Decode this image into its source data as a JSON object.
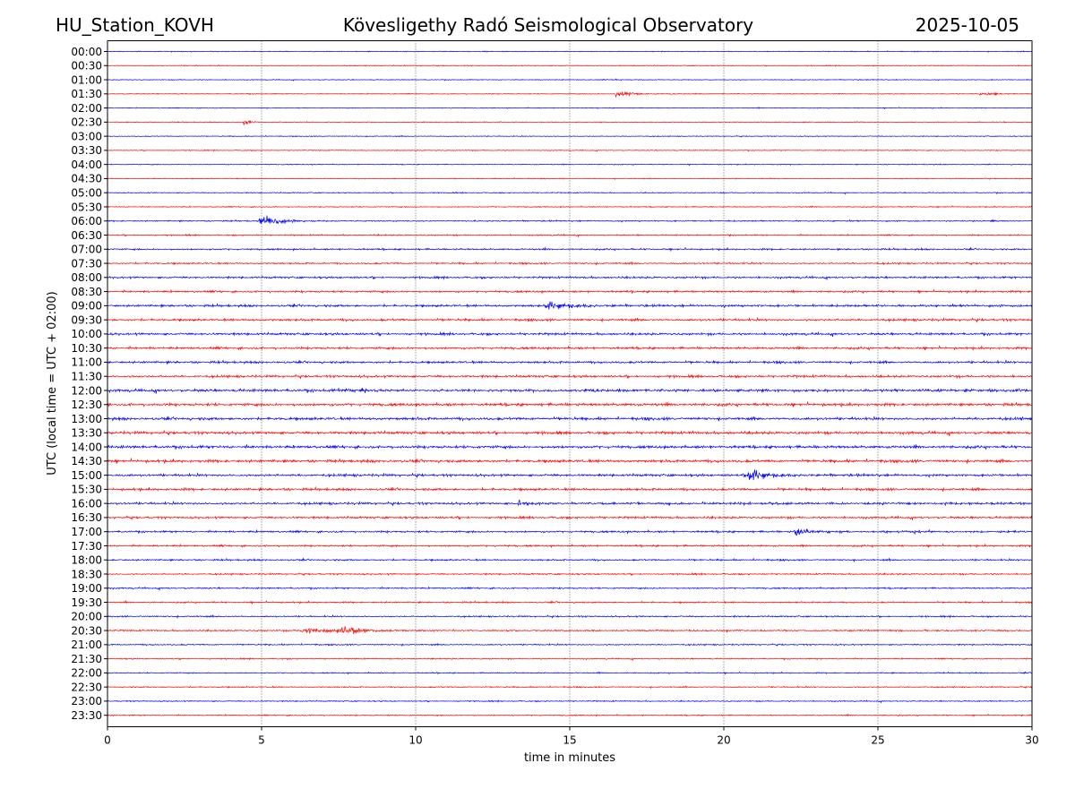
{
  "header": {
    "station": "HU_Station_KOVH",
    "observatory": "Kövesligethy Radó Seismological Observatory",
    "date": "2025-10-05"
  },
  "chart_data": {
    "type": "line",
    "title": "Kövesligethy Radó Seismological Observatory",
    "xlabel": "time in minutes",
    "ylabel": "UTC (local time = UTC + 02:00)",
    "xlim": [
      0,
      30
    ],
    "x_ticks": [
      "0",
      "5",
      "10",
      "15",
      "20",
      "25",
      "30"
    ],
    "x_tick_values": [
      0,
      5,
      10,
      15,
      20,
      25,
      30
    ],
    "grid": "vertical dotted lines at 5-minute ticks",
    "colors": {
      "even_rows": "#0000ff",
      "odd_rows": "#ff0000"
    },
    "rows": [
      {
        "label": "00:00",
        "color": "#0000ff",
        "noise": 0.5,
        "events": []
      },
      {
        "label": "00:30",
        "color": "#ff0000",
        "noise": 0.5,
        "events": []
      },
      {
        "label": "01:00",
        "color": "#0000ff",
        "noise": 0.5,
        "events": [
          {
            "t": 16.5,
            "amp": 1.8,
            "dur": 0.15
          }
        ]
      },
      {
        "label": "01:30",
        "color": "#ff0000",
        "noise": 0.5,
        "events": [
          {
            "t": 16.5,
            "amp": 7,
            "dur": 1.0
          },
          {
            "t": 28.3,
            "amp": 2.5,
            "dur": 1.2
          }
        ]
      },
      {
        "label": "02:00",
        "color": "#0000ff",
        "noise": 0.5,
        "events": []
      },
      {
        "label": "02:30",
        "color": "#ff0000",
        "noise": 0.5,
        "events": [
          {
            "t": 4.4,
            "amp": 4.5,
            "dur": 0.5
          }
        ]
      },
      {
        "label": "03:00",
        "color": "#0000ff",
        "noise": 0.5,
        "events": []
      },
      {
        "label": "03:30",
        "color": "#ff0000",
        "noise": 0.5,
        "events": []
      },
      {
        "label": "04:00",
        "color": "#0000ff",
        "noise": 0.5,
        "events": []
      },
      {
        "label": "04:30",
        "color": "#ff0000",
        "noise": 0.5,
        "events": []
      },
      {
        "label": "05:00",
        "color": "#0000ff",
        "noise": 0.6,
        "events": []
      },
      {
        "label": "05:30",
        "color": "#ff0000",
        "noise": 0.6,
        "events": []
      },
      {
        "label": "06:00",
        "color": "#0000ff",
        "noise": 0.8,
        "events": [
          {
            "t": 4.95,
            "amp": 11,
            "dur": 1.2
          }
        ]
      },
      {
        "label": "06:30",
        "color": "#ff0000",
        "noise": 0.8,
        "events": []
      },
      {
        "label": "07:00",
        "color": "#0000ff",
        "noise": 1.0,
        "events": []
      },
      {
        "label": "07:30",
        "color": "#ff0000",
        "noise": 1.0,
        "events": []
      },
      {
        "label": "08:00",
        "color": "#0000ff",
        "noise": 1.2,
        "events": []
      },
      {
        "label": "08:30",
        "color": "#ff0000",
        "noise": 1.2,
        "events": []
      },
      {
        "label": "09:00",
        "color": "#0000ff",
        "noise": 1.4,
        "events": [
          {
            "t": 14.2,
            "amp": 6.5,
            "dur": 2.0
          }
        ]
      },
      {
        "label": "09:30",
        "color": "#ff0000",
        "noise": 1.4,
        "events": []
      },
      {
        "label": "10:00",
        "color": "#0000ff",
        "noise": 1.4,
        "events": []
      },
      {
        "label": "10:30",
        "color": "#ff0000",
        "noise": 1.4,
        "events": []
      },
      {
        "label": "11:00",
        "color": "#0000ff",
        "noise": 1.4,
        "events": []
      },
      {
        "label": "11:30",
        "color": "#ff0000",
        "noise": 1.4,
        "events": []
      },
      {
        "label": "12:00",
        "color": "#0000ff",
        "noise": 1.7,
        "events": [
          {
            "t": 7.5,
            "amp": 3.5,
            "dur": 1.0
          }
        ]
      },
      {
        "label": "12:30",
        "color": "#ff0000",
        "noise": 1.7,
        "events": []
      },
      {
        "label": "13:00",
        "color": "#0000ff",
        "noise": 1.7,
        "events": []
      },
      {
        "label": "13:30",
        "color": "#ff0000",
        "noise": 1.7,
        "events": []
      },
      {
        "label": "14:00",
        "color": "#0000ff",
        "noise": 1.7,
        "events": []
      },
      {
        "label": "14:30",
        "color": "#ff0000",
        "noise": 1.7,
        "events": []
      },
      {
        "label": "15:00",
        "color": "#0000ff",
        "noise": 1.5,
        "events": [
          {
            "t": 20.8,
            "amp": 10,
            "dur": 1.3
          }
        ]
      },
      {
        "label": "15:30",
        "color": "#ff0000",
        "noise": 1.5,
        "events": []
      },
      {
        "label": "16:00",
        "color": "#0000ff",
        "noise": 1.4,
        "events": [
          {
            "t": 13.3,
            "amp": 5,
            "dur": 1.2
          }
        ]
      },
      {
        "label": "16:30",
        "color": "#ff0000",
        "noise": 1.3,
        "events": []
      },
      {
        "label": "17:00",
        "color": "#0000ff",
        "noise": 1.2,
        "events": [
          {
            "t": 22.3,
            "amp": 8,
            "dur": 1.2
          }
        ]
      },
      {
        "label": "17:30",
        "color": "#ff0000",
        "noise": 1.1,
        "events": []
      },
      {
        "label": "18:00",
        "color": "#0000ff",
        "noise": 1.0,
        "events": []
      },
      {
        "label": "18:30",
        "color": "#ff0000",
        "noise": 0.9,
        "events": []
      },
      {
        "label": "19:00",
        "color": "#0000ff",
        "noise": 0.9,
        "events": []
      },
      {
        "label": "19:30",
        "color": "#ff0000",
        "noise": 0.9,
        "events": []
      },
      {
        "label": "20:00",
        "color": "#0000ff",
        "noise": 0.9,
        "events": []
      },
      {
        "label": "20:30",
        "color": "#ff0000",
        "noise": 0.9,
        "events": [
          {
            "t": 6.3,
            "amp": 5,
            "dur": 3.0
          },
          {
            "t": 7.6,
            "amp": 5.5,
            "dur": 2.0
          }
        ]
      },
      {
        "label": "21:00",
        "color": "#0000ff",
        "noise": 0.8,
        "events": []
      },
      {
        "label": "21:30",
        "color": "#ff0000",
        "noise": 0.7,
        "events": []
      },
      {
        "label": "22:00",
        "color": "#0000ff",
        "noise": 0.7,
        "events": []
      },
      {
        "label": "22:30",
        "color": "#ff0000",
        "noise": 0.7,
        "events": []
      },
      {
        "label": "23:00",
        "color": "#0000ff",
        "noise": 0.7,
        "events": []
      },
      {
        "label": "23:30",
        "color": "#ff0000",
        "noise": 0.7,
        "events": []
      }
    ]
  }
}
